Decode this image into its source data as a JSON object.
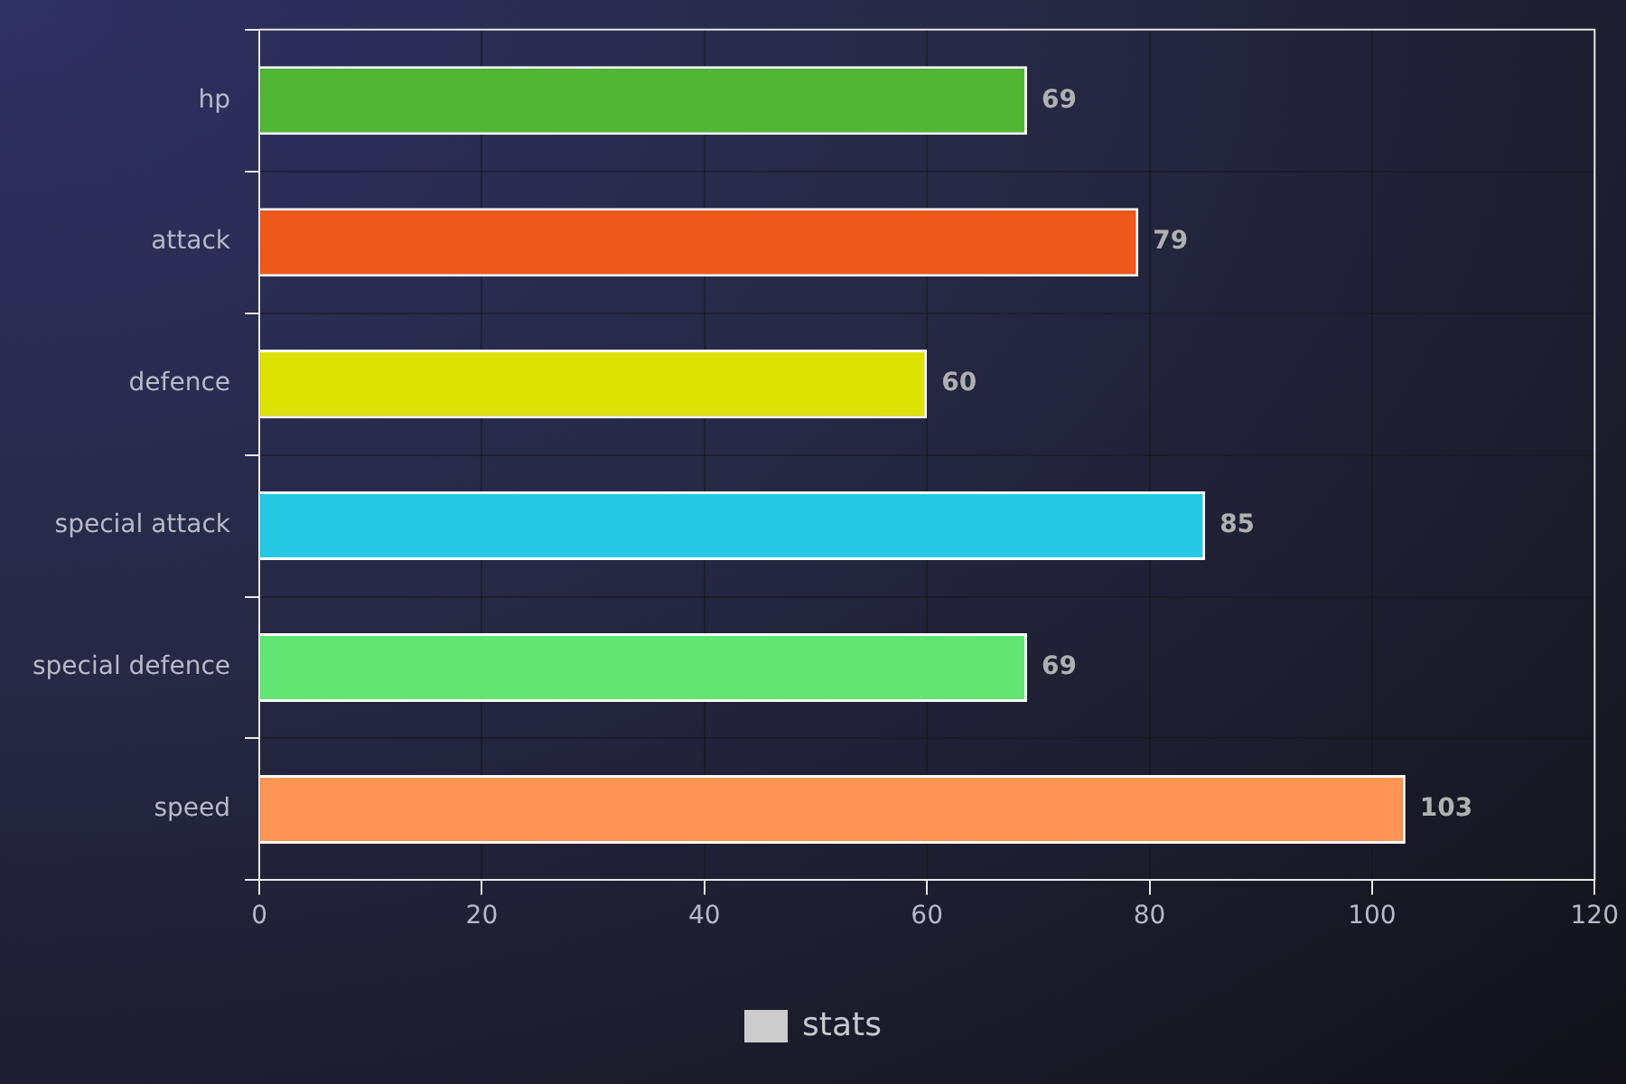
{
  "chart_data": {
    "type": "bar",
    "orientation": "horizontal",
    "categories": [
      "hp",
      "attack",
      "defence",
      "special attack",
      "special defence",
      "speed"
    ],
    "series": [
      {
        "name": "stats",
        "colors": [
          "#52b635",
          "#ef581b",
          "#dde200",
          "#25c9e4",
          "#63e573",
          "#fe9555"
        ],
        "values": [
          69,
          79,
          60,
          85,
          69,
          103
        ]
      }
    ],
    "xlim": [
      0,
      120
    ],
    "xticks": [
      0,
      20,
      40,
      60,
      80,
      100,
      120
    ],
    "grid": true,
    "legend": "bottom",
    "data_labels": true
  }
}
